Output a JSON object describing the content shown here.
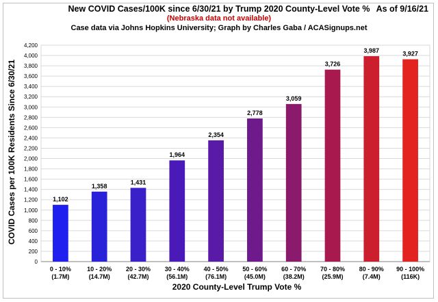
{
  "header": {
    "title": "New COVID Cases/100K since 6/30/21 by Trump 2020 County-Level Vote %",
    "subtitle": "(Nebraska data not available)",
    "credit": "Case data via Johns Hopkins University; Graph by Charles Gaba / ACASignups.net",
    "as_of": "As of 9/16/21"
  },
  "chart_data": {
    "type": "bar",
    "title": "New COVID Cases/100K since 6/30/21 by Trump 2020 County-Level Vote %",
    "xlabel": "2020 County-Level Trump Vote %",
    "ylabel": "COVID Cases per 100K Residents Since 6/30/21",
    "ylim": [
      0,
      4200
    ],
    "y_tick_step": 200,
    "grid": true,
    "categories": [
      "0 - 10%",
      "10 - 20%",
      "20 - 30%",
      "30 - 40%",
      "40 - 50%",
      "50 - 60%",
      "60 - 70%",
      "70 - 80%",
      "80 - 90%",
      "90 - 100%"
    ],
    "populations": [
      "(1.7M)",
      "(14.7M)",
      "(42.7M)",
      "(56.1M)",
      "(76.1M)",
      "(45.0M)",
      "(38.2M)",
      "(25.9M)",
      "(7.4M)",
      "(116K)"
    ],
    "values": [
      1102,
      1358,
      1431,
      1964,
      2354,
      2778,
      3059,
      3726,
      3987,
      3927
    ],
    "value_labels": [
      "1,102",
      "1,358",
      "1,431",
      "1,964",
      "2,354",
      "2,778",
      "3,059",
      "3,726",
      "3,987",
      "3,927"
    ],
    "colors": [
      "#1f1ff0",
      "#2a22d8",
      "#3a20c8",
      "#4a1ab8",
      "#5a1aa8",
      "#6e1a8c",
      "#8a1a6c",
      "#a81a4e",
      "#cc1f2e",
      "#e3231f"
    ]
  }
}
